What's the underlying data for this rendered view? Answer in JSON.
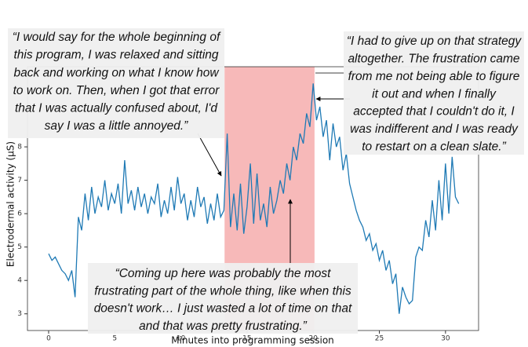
{
  "chart_data": {
    "type": "line",
    "xlabel": "Minutes into programming session",
    "ylabel": "Electrodermal activity (μS)",
    "xlim": [
      -1.6,
      32.5
    ],
    "ylim": [
      2.5,
      10.4
    ],
    "xticks": [
      0,
      5,
      10,
      15,
      20,
      25,
      30
    ],
    "yticks": [
      3,
      4,
      5,
      6,
      7,
      8
    ],
    "span": {
      "x": [
        13.3,
        20.1
      ],
      "color": "#f7b9b9"
    },
    "x": [
      0,
      0.25,
      0.5,
      0.75,
      1,
      1.25,
      1.5,
      1.75,
      2,
      2.25,
      2.5,
      2.75,
      3,
      3.25,
      3.5,
      3.75,
      4,
      4.25,
      4.5,
      4.75,
      5,
      5.25,
      5.5,
      5.75,
      6,
      6.25,
      6.5,
      6.75,
      7,
      7.25,
      7.5,
      7.75,
      8,
      8.25,
      8.5,
      8.75,
      9,
      9.25,
      9.5,
      9.75,
      10,
      10.25,
      10.5,
      10.75,
      11,
      11.25,
      11.5,
      11.75,
      12,
      12.25,
      12.5,
      12.75,
      13,
      13.25,
      13.5,
      13.75,
      14,
      14.25,
      14.5,
      14.75,
      15,
      15.25,
      15.5,
      15.75,
      16,
      16.25,
      16.5,
      16.75,
      17,
      17.25,
      17.5,
      17.75,
      18,
      18.25,
      18.5,
      18.75,
      19,
      19.25,
      19.5,
      19.75,
      20,
      20.25,
      20.5,
      20.75,
      21,
      21.25,
      21.5,
      21.75,
      22,
      22.25,
      22.5,
      22.75,
      23,
      23.25,
      23.5,
      23.75,
      24,
      24.25,
      24.5,
      24.75,
      25,
      25.25,
      25.5,
      25.75,
      26,
      26.25,
      26.5,
      26.75,
      27,
      27.25,
      27.5,
      27.75,
      28,
      28.25,
      28.5,
      28.75,
      29,
      29.25,
      29.5,
      29.75,
      30,
      30.25,
      30.5,
      30.75,
      31
    ],
    "series": [
      {
        "color": "#1f7ab5",
        "values": [
          4.8,
          4.6,
          4.7,
          4.5,
          4.3,
          4.2,
          4.0,
          4.3,
          3.5,
          5.9,
          5.5,
          6.6,
          5.8,
          6.8,
          6.0,
          6.5,
          6.2,
          7.0,
          6.1,
          6.6,
          6.3,
          6.9,
          6.0,
          7.6,
          6.3,
          6.7,
          6.1,
          6.8,
          6.2,
          6.6,
          6.0,
          6.5,
          6.3,
          6.9,
          5.9,
          6.4,
          6.0,
          6.8,
          6.1,
          7.1,
          6.3,
          6.6,
          5.8,
          6.4,
          5.9,
          6.8,
          6.2,
          6.5,
          5.7,
          6.3,
          5.8,
          6.6,
          5.9,
          6.1,
          8.4,
          5.6,
          6.6,
          5.5,
          6.9,
          5.4,
          6.2,
          7.5,
          5.7,
          7.2,
          5.8,
          6.3,
          5.6,
          6.8,
          6.0,
          6.4,
          7.0,
          6.6,
          7.5,
          7.0,
          8.0,
          7.6,
          8.4,
          8.1,
          9.0,
          8.6,
          9.9,
          8.8,
          9.2,
          8.3,
          8.8,
          7.6,
          8.7,
          8.0,
          8.3,
          7.3,
          7.8,
          6.9,
          6.5,
          6.1,
          5.8,
          5.6,
          5.2,
          5.4,
          4.9,
          5.1,
          4.6,
          4.9,
          4.3,
          4.6,
          3.9,
          4.2,
          3.0,
          3.8,
          3.5,
          3.3,
          3.4,
          4.7,
          5.0,
          4.9,
          5.8,
          5.3,
          6.4,
          5.5,
          7.0,
          5.8,
          7.5,
          6.0,
          7.7,
          6.5,
          6.3
        ]
      }
    ],
    "annotations": [
      {
        "lines": [
          "“I would say for the whole beginning of",
          "this program, I was relaxed and sitting",
          "back and working on what I know how",
          "to work on. Then, when I got that error",
          "that I was actually confused about, I'd",
          "say I was a little annoyed.”"
        ]
      },
      {
        "lines": [
          "“I had to give up on that strategy",
          "altogether. The frustration came",
          "from me not being able to figure",
          "it out and when I finally",
          "accepted that I couldn't do it, I",
          "was indifferent and I was ready",
          "to restart on a clean slate.”"
        ]
      },
      {
        "lines": [
          "“Coming up here was probably the most",
          "frustrating part of the whole thing, like when this",
          "doesn't work… I just wasted a lot of time on that",
          "and that was pretty frustrating.”"
        ]
      }
    ]
  }
}
